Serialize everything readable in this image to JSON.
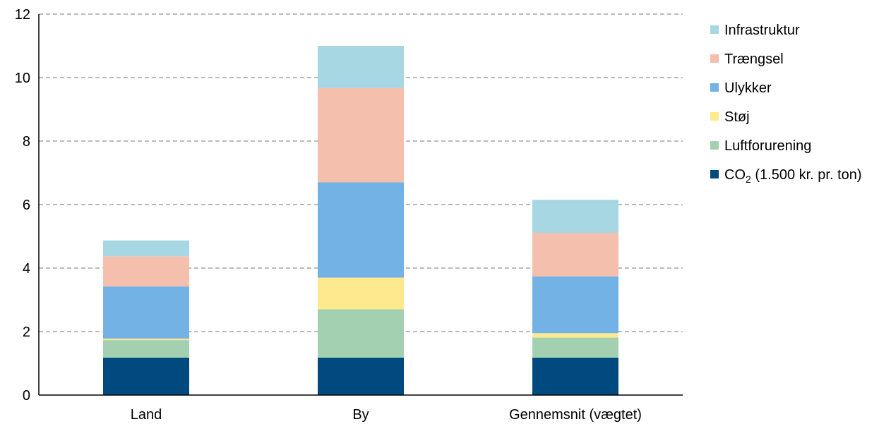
{
  "chart_data": {
    "type": "bar",
    "stacked": true,
    "categories": [
      "Land",
      "By",
      "Gennemsnit (vægtet)"
    ],
    "ylim": [
      0,
      12
    ],
    "yticks": [
      0,
      2,
      4,
      6,
      8,
      10,
      12
    ],
    "grid": true,
    "legend_position": "right",
    "series": [
      {
        "name": "CO₂ (1.500 kr. pr. ton)",
        "name_main": "CO",
        "name_sub": "2",
        "name_rest": " (1.500 kr. pr. ton)",
        "color": "#004a80",
        "values": [
          1.18,
          1.18,
          1.18
        ]
      },
      {
        "name": "Luftforurening",
        "color": "#a2d0b0",
        "values": [
          0.55,
          1.52,
          0.63
        ]
      },
      {
        "name": "Støj",
        "color": "#ffe98f",
        "values": [
          0.05,
          1.0,
          0.14
        ]
      },
      {
        "name": "Ulykker",
        "color": "#72b2e4",
        "values": [
          1.64,
          3.0,
          1.79
        ]
      },
      {
        "name": "Trængsel",
        "color": "#f5bfae",
        "values": [
          0.95,
          2.97,
          1.37
        ]
      },
      {
        "name": "Infrastruktur",
        "color": "#a7d7e2",
        "values": [
          0.5,
          1.33,
          1.04
        ]
      }
    ]
  }
}
